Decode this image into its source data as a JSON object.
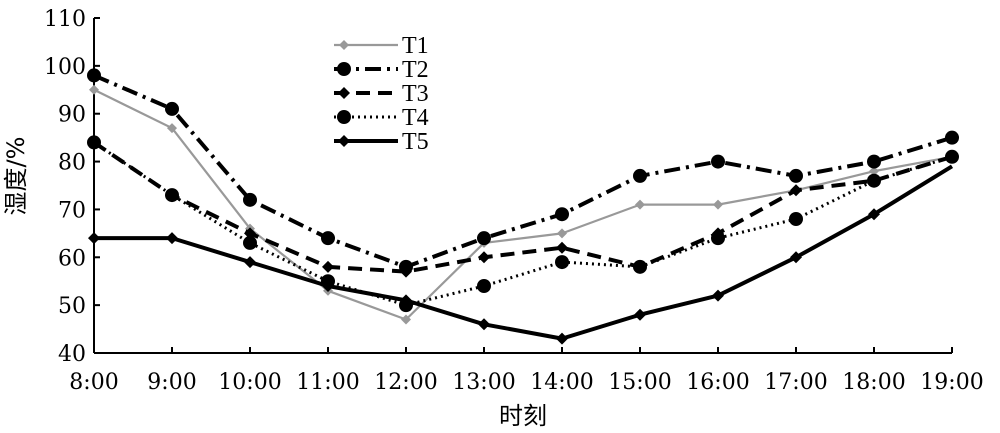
{
  "chart_data": {
    "type": "line",
    "xlabel": "时刻",
    "ylabel": "湿度/%",
    "categories": [
      "8:00",
      "9:00",
      "10:00",
      "11:00",
      "12:00",
      "13:00",
      "14:00",
      "15:00",
      "16:00",
      "17:00",
      "18:00",
      "19:00"
    ],
    "ylim": [
      40,
      110
    ],
    "yticks": [
      40,
      50,
      60,
      70,
      80,
      90,
      100,
      110
    ],
    "grid": false,
    "legend_position": "top-center",
    "series": [
      {
        "name": "T1",
        "color": "#999999",
        "marker": "diamond",
        "line": "solid-thin",
        "values": [
          95,
          87,
          66,
          53,
          47,
          63,
          65,
          71,
          71,
          74,
          78,
          81
        ]
      },
      {
        "name": "T2",
        "color": "#000000",
        "marker": "circle",
        "line": "dash-dot",
        "values": [
          98,
          91,
          72,
          64,
          58,
          64,
          69,
          77,
          80,
          77,
          80,
          85
        ]
      },
      {
        "name": "T3",
        "color": "#000000",
        "marker": "diamond",
        "line": "dashed",
        "values": [
          84,
          73,
          65,
          58,
          57,
          60,
          62,
          58,
          65,
          74,
          76,
          81
        ]
      },
      {
        "name": "T4",
        "color": "#000000",
        "marker": "circle",
        "line": "dotted",
        "values": [
          84,
          73,
          63,
          55,
          50,
          54,
          59,
          58,
          64,
          68,
          76,
          81
        ]
      },
      {
        "name": "T5",
        "color": "#000000",
        "marker": "diamond",
        "line": "solid-thick",
        "values": [
          64,
          64,
          59,
          54,
          51,
          46,
          43,
          48,
          52,
          60,
          69,
          79
        ]
      }
    ]
  }
}
